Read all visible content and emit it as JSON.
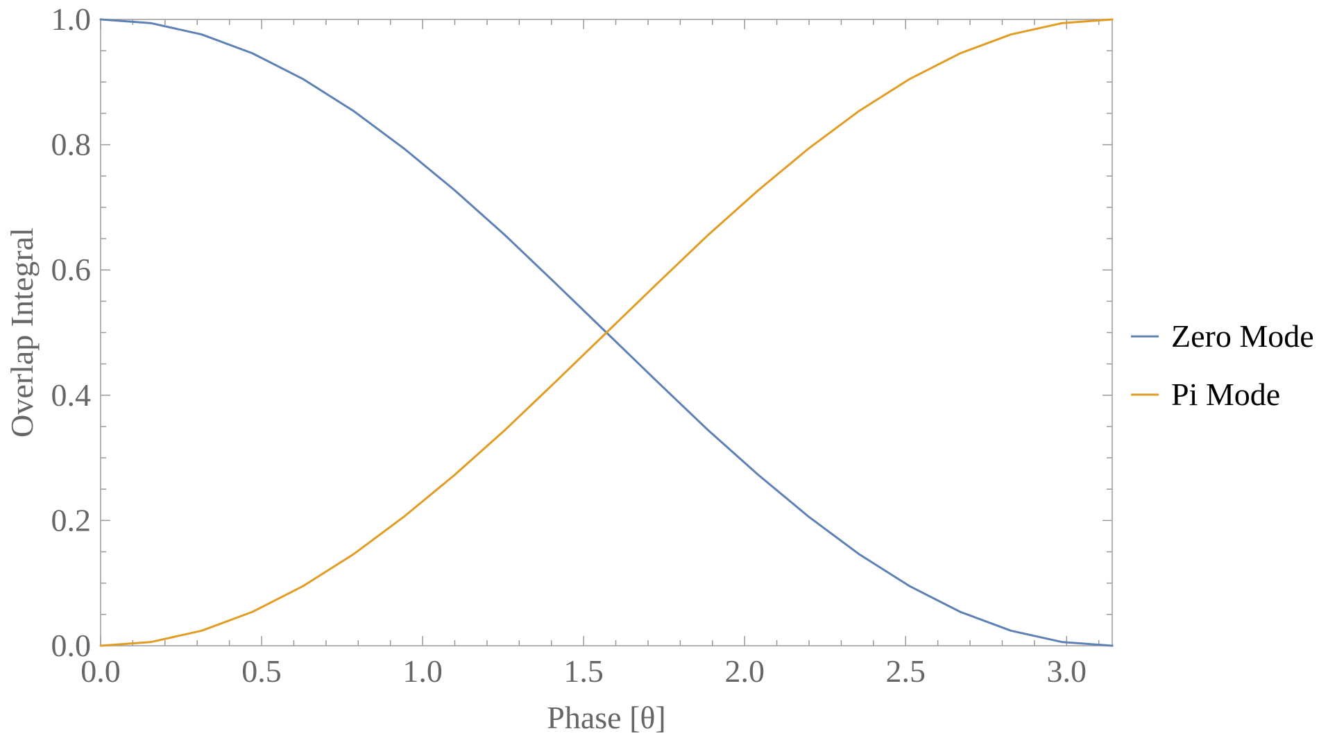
{
  "chart_data": {
    "type": "line",
    "xlabel": "Phase [θ]",
    "ylabel": "Overlap Integral",
    "xlim": [
      0,
      3.14159
    ],
    "ylim": [
      0,
      1
    ],
    "x_ticks": [
      "0.0",
      "0.5",
      "1.0",
      "1.5",
      "2.0",
      "2.5",
      "3.0"
    ],
    "y_ticks": [
      "0.0",
      "0.2",
      "0.4",
      "0.6",
      "0.8",
      "1.0"
    ],
    "grid": false,
    "legend_position": "right",
    "x": [
      0.0,
      0.157,
      0.314,
      0.471,
      0.628,
      0.785,
      0.942,
      1.1,
      1.257,
      1.414,
      1.571,
      1.728,
      1.885,
      2.042,
      2.199,
      2.356,
      2.513,
      2.67,
      2.827,
      2.985,
      3.142
    ],
    "series": [
      {
        "name": "Zero Mode",
        "color": "#5e81b5",
        "values": [
          1.0,
          0.994,
          0.976,
          0.946,
          0.905,
          0.854,
          0.794,
          0.727,
          0.655,
          0.578,
          0.5,
          0.422,
          0.345,
          0.273,
          0.206,
          0.146,
          0.095,
          0.054,
          0.024,
          0.006,
          0.0
        ]
      },
      {
        "name": "Pi Mode",
        "color": "#e19c24",
        "values": [
          0.0,
          0.006,
          0.024,
          0.054,
          0.095,
          0.146,
          0.206,
          0.273,
          0.345,
          0.422,
          0.5,
          0.578,
          0.655,
          0.727,
          0.794,
          0.854,
          0.905,
          0.946,
          0.976,
          0.994,
          1.0
        ]
      }
    ]
  }
}
